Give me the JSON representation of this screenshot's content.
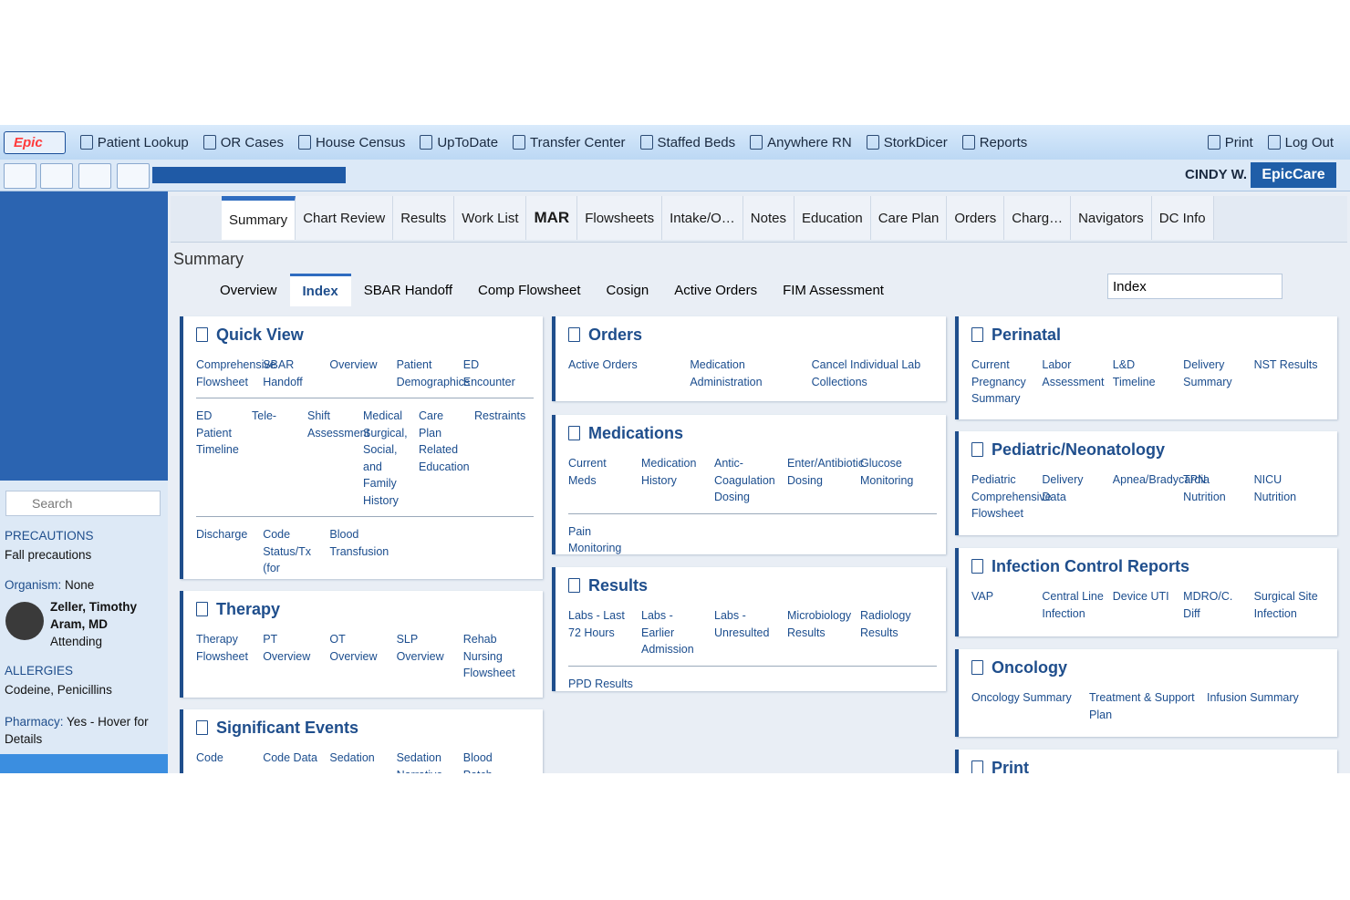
{
  "toolbar": {
    "logo": "Epic",
    "items": [
      "Patient Lookup",
      "OR Cases",
      "House Census",
      "UpToDate",
      "Transfer Center",
      "Staffed Beds",
      "Anywhere RN",
      "StorkDicer",
      "Reports"
    ],
    "right": [
      "Print",
      "Log Out"
    ]
  },
  "header": {
    "user": "CINDY W.",
    "app": "EpicCare"
  },
  "tabs": [
    "Summary",
    "Chart Review",
    "Results",
    "Work List",
    "MAR",
    "Flowsheets",
    "Intake/O…",
    "Notes",
    "Education",
    "Care Plan",
    "Orders",
    "Charg…",
    "Navigators",
    "DC Info"
  ],
  "section_title": "Summary",
  "subtabs": [
    "Overview",
    "Index",
    "SBAR Handoff",
    "Comp Flowsheet",
    "Cosign",
    "Active Orders",
    "FIM Assessment"
  ],
  "index_search": "Index",
  "sidebar": {
    "search": "Search",
    "precautions_label": "PRECAUTIONS",
    "precautions_value": "Fall precautions",
    "organism_label": "Organism:",
    "organism_value": "None",
    "patient_name": "Zeller, Timothy Aram, MD",
    "patient_role": "Attending",
    "allergies_label": "ALLERGIES",
    "allergies_value": "Codeine, Penicillins",
    "pharmacy_label": "Pharmacy:",
    "pharmacy_value": "Yes - Hover for Details"
  },
  "cards": [
    {
      "title": "Quick View",
      "rows": [
        [
          "Comprehensive Flowsheet",
          "SBAR Handoff",
          "Overview",
          "Patient Demographics",
          "ED Encounter"
        ],
        [
          "ED Patient Timeline",
          "Tele-",
          "Shift Assessment",
          "Medical Surgical, Social, and Family History",
          "Care Plan Related Education",
          "Restraints"
        ],
        [
          "Discharge",
          "Code Status/Tx (for printing)",
          "Blood Transfusion"
        ]
      ]
    },
    {
      "title": "Therapy",
      "rows": [
        [
          "Therapy Flowsheet",
          "PT Overview",
          "OT Overview",
          "SLP Overview",
          "Rehab Nursing Flowsheet"
        ]
      ]
    },
    {
      "title": "Significant Events",
      "rows": [
        [
          "Code",
          "Code Data",
          "Sedation",
          "Sedation Narrative",
          "Blood Patch"
        ]
      ]
    },
    {
      "title": "Orders",
      "rows": [
        [
          "Active Orders",
          "Medication Administration",
          "Cancel Individual Lab Collections"
        ]
      ]
    },
    {
      "title": "Medications",
      "rows": [
        [
          "Current Meds",
          "Medication History",
          "Antic-Coagulation Dosing",
          "Enter/Antibiotic Dosing",
          "Glucose Monitoring"
        ],
        [
          "Pain Monitoring"
        ]
      ]
    },
    {
      "title": "Results",
      "rows": [
        [
          "Labs - Last 72 Hours",
          "Labs - Earlier Admission",
          "Labs - Unresulted",
          "Microbiology Results",
          "Radiology Results"
        ],
        [
          "PPD Results"
        ]
      ]
    },
    {
      "title": "Perinatal",
      "rows": [
        [
          "Current Pregnancy Summary",
          "Labor Assessment",
          "L&D Timeline",
          "Delivery Summary",
          "NST Results"
        ]
      ]
    },
    {
      "title": "Pediatric/Neonatology",
      "rows": [
        [
          "Pediatric Comprehensive Flowsheet",
          "Delivery Data",
          "Apnea/Bradycardia",
          "TPN Nutrition",
          "NICU Nutrition"
        ]
      ]
    },
    {
      "title": "Infection Control Reports",
      "rows": [
        [
          "VAP",
          "Central Line Infection",
          "Device UTI",
          "MDRO/C. Diff",
          "Surgical Site Infection"
        ]
      ]
    },
    {
      "title": "Oncology",
      "rows": [
        [
          "Oncology Summary",
          "Treatment & Support Plan",
          "Infusion Summary"
        ]
      ]
    },
    {
      "title": "Print",
      "rows": []
    }
  ]
}
